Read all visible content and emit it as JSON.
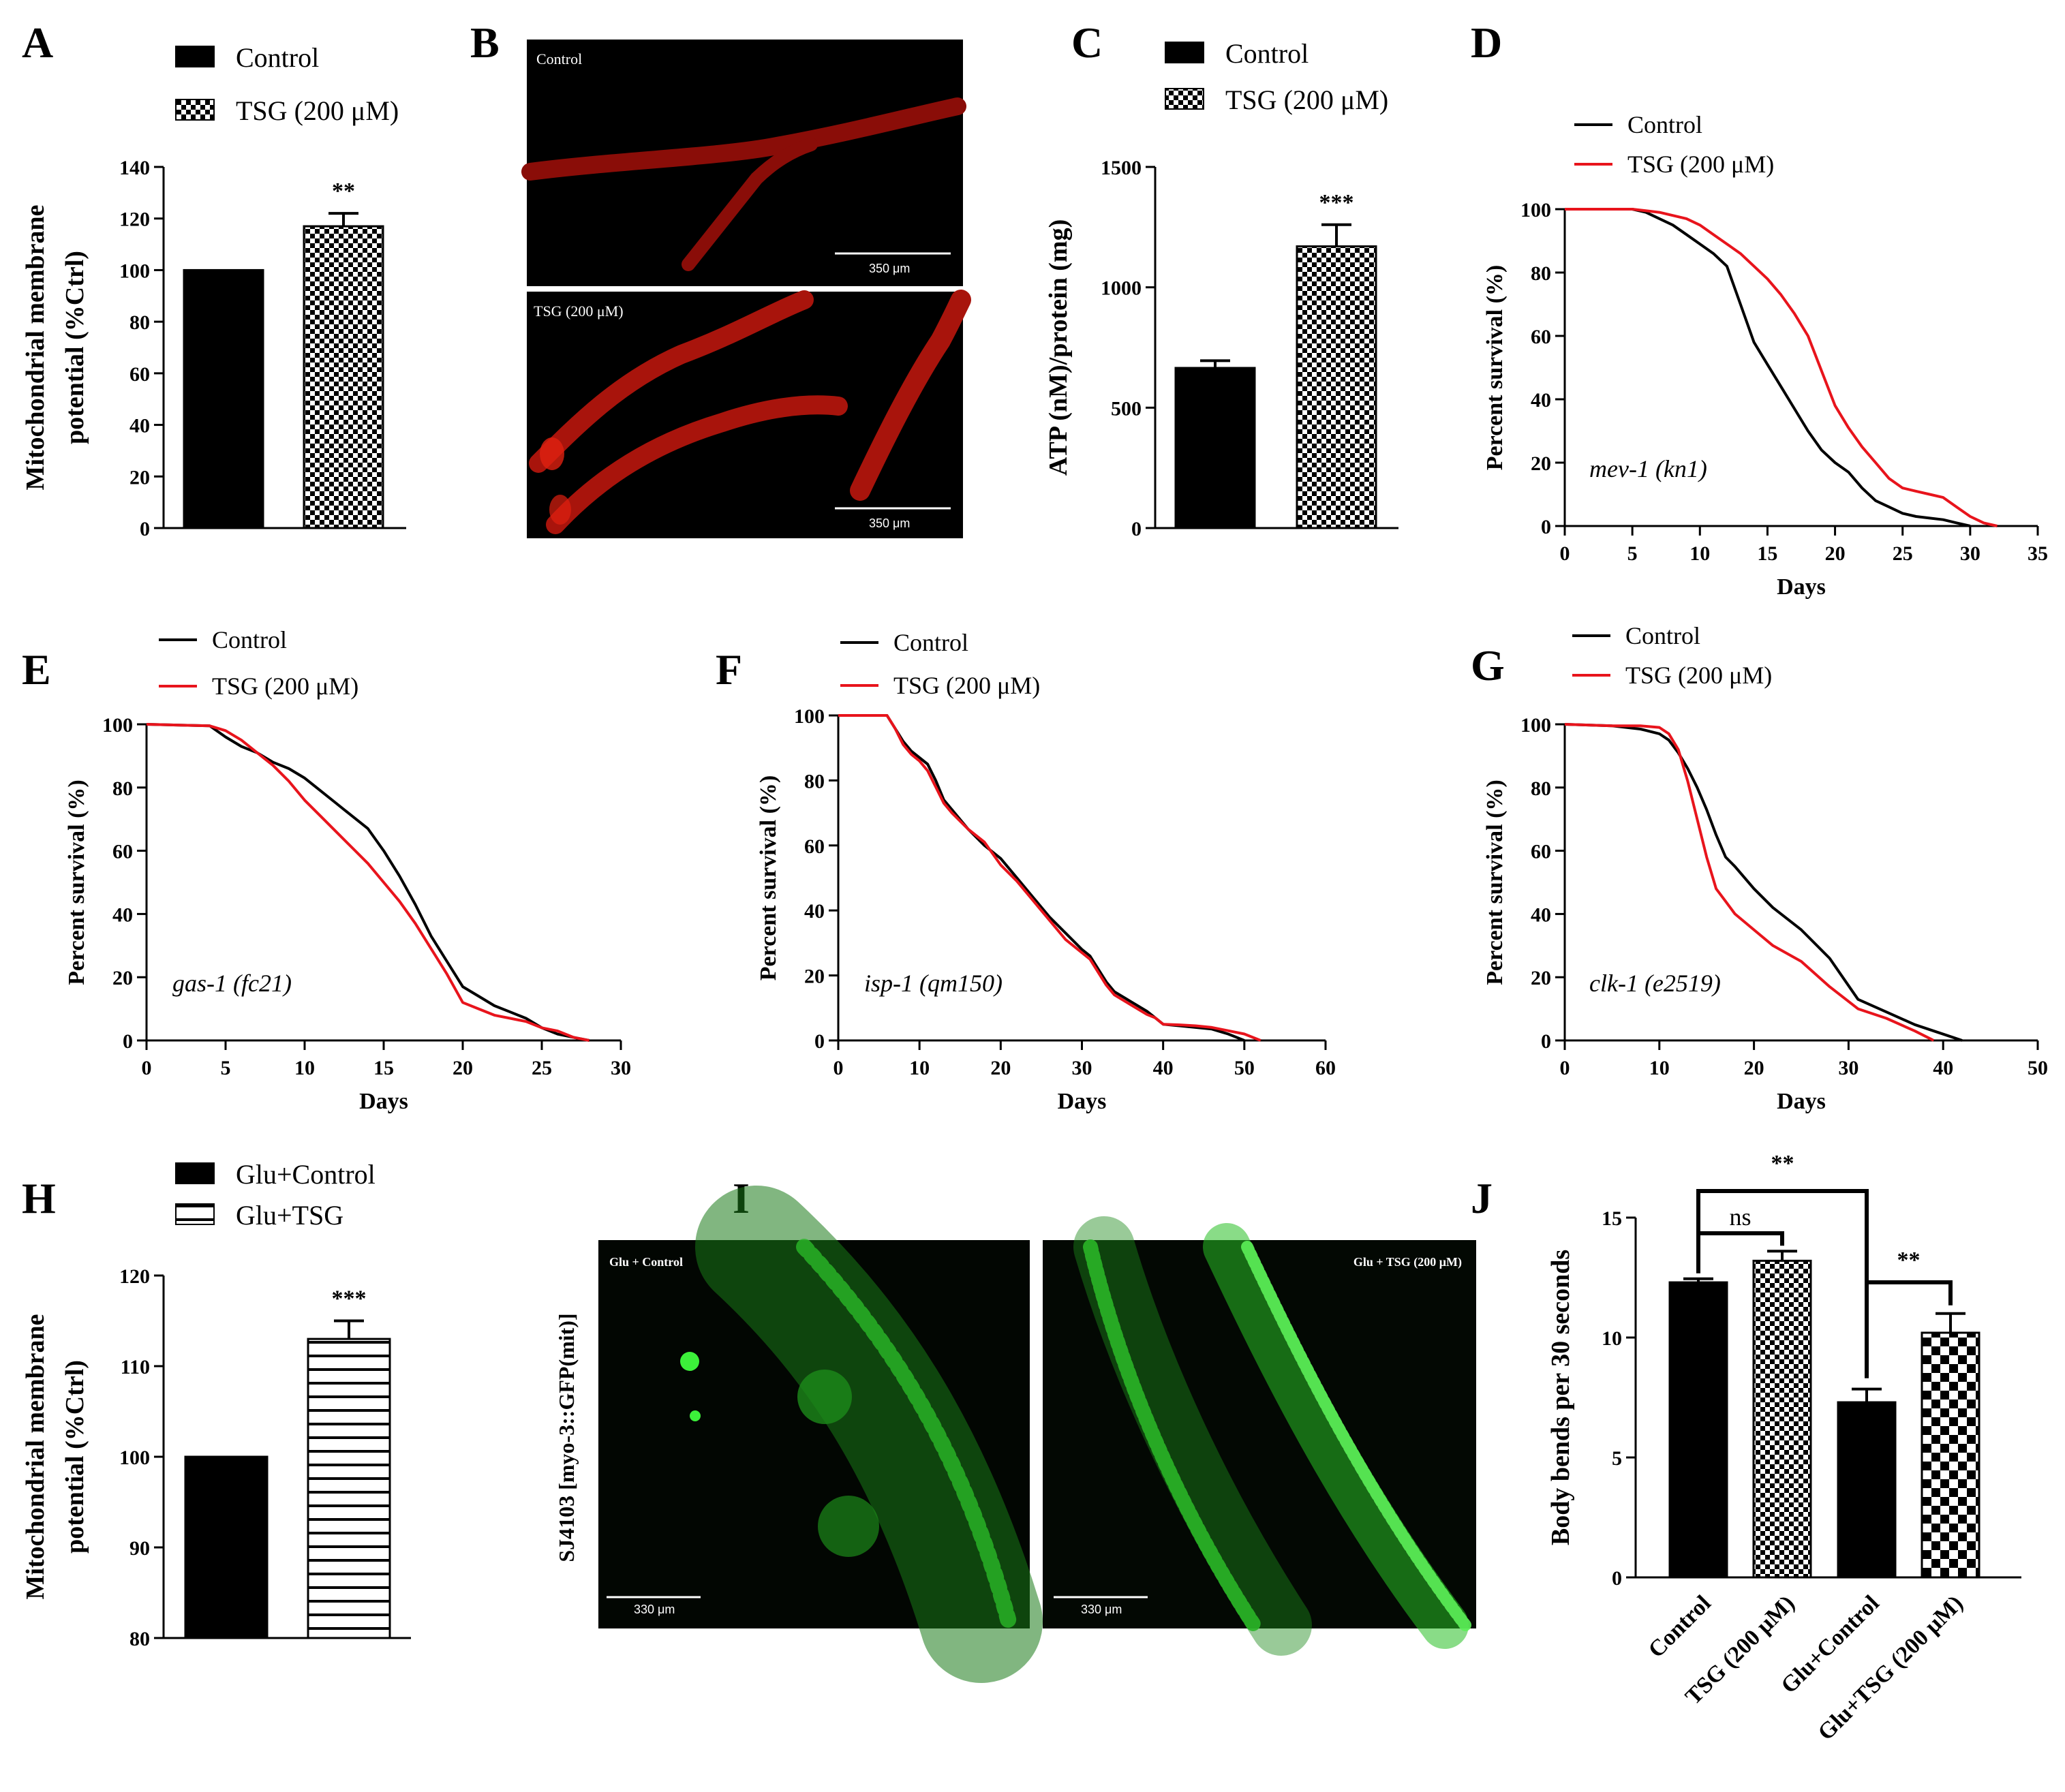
{
  "colors": {
    "control": "#000000",
    "tsg": "#e8141c",
    "micro_red": "#d01810",
    "micro_green": "#2ee02a"
  },
  "chart_data": [
    {
      "id": "A",
      "panel": "A",
      "type": "bar",
      "categories": [
        "Control",
        "TSG (200 μM)"
      ],
      "values": [
        100,
        117
      ],
      "errors": [
        0,
        5
      ],
      "patterns": [
        "solid",
        "checker"
      ],
      "significance": [
        {
          "to": 1,
          "label": "**"
        }
      ],
      "ylabel": [
        "Mitochondrial membrane",
        "potential (%Ctrl)"
      ],
      "ylim": [
        0,
        140
      ],
      "yticks": [
        0,
        20,
        40,
        60,
        80,
        100,
        120,
        140
      ],
      "legend": [
        "Control",
        "TSG (200 μM)"
      ]
    },
    {
      "id": "C",
      "panel": "C",
      "type": "bar",
      "categories": [
        "Control",
        "TSG (200 μM)"
      ],
      "values": [
        665,
        1170
      ],
      "errors": [
        30,
        90
      ],
      "patterns": [
        "solid",
        "checker"
      ],
      "significance": [
        {
          "to": 1,
          "label": "***"
        }
      ],
      "ylabel": [
        "ATP (nM)/protein (mg)"
      ],
      "ylim": [
        0,
        1500
      ],
      "yticks": [
        0,
        500,
        1000,
        1500
      ],
      "legend": [
        "Control",
        "TSG (200 μM)"
      ]
    },
    {
      "id": "D",
      "panel": "D",
      "type": "line",
      "xlabel": "Days",
      "ylabel": "Percent survival (%)",
      "xlim": [
        0,
        35
      ],
      "ylim": [
        0,
        100
      ],
      "xticks": [
        0,
        5,
        10,
        15,
        20,
        25,
        30,
        35
      ],
      "yticks": [
        0,
        20,
        40,
        60,
        80,
        100
      ],
      "annotation": "mev-1 (kn1)",
      "series": [
        {
          "name": "Control",
          "x": [
            0,
            5,
            6,
            7,
            8,
            9,
            10,
            11,
            12,
            13,
            14,
            15,
            16,
            17,
            18,
            19,
            20,
            21,
            22,
            23,
            24,
            25,
            26,
            27,
            28,
            29,
            30
          ],
          "y": [
            100,
            100,
            99,
            97,
            95,
            92,
            89,
            86,
            82,
            70,
            58,
            51,
            44,
            37,
            30,
            24,
            20,
            17,
            12,
            8,
            6,
            4,
            3,
            2.5,
            2,
            1,
            0
          ]
        },
        {
          "name": "TSG (200 μM)",
          "x": [
            0,
            5,
            7,
            9,
            10,
            11,
            12,
            13,
            14,
            15,
            16,
            17,
            18,
            19,
            20,
            21,
            22,
            23,
            24,
            25,
            26,
            27,
            28,
            29,
            30,
            31,
            32
          ],
          "y": [
            100,
            100,
            99,
            97,
            95,
            92,
            89,
            86,
            82,
            78,
            73,
            67,
            60,
            49,
            38,
            31,
            25,
            20,
            15,
            12,
            11,
            10,
            9,
            6,
            3,
            1,
            0
          ]
        }
      ],
      "legend": [
        "Control",
        "TSG (200 μM)"
      ]
    },
    {
      "id": "E",
      "panel": "E",
      "type": "line",
      "xlabel": "Days",
      "ylabel": "Percent survival (%)",
      "xlim": [
        0,
        30
      ],
      "ylim": [
        0,
        100
      ],
      "xticks": [
        0,
        5,
        10,
        15,
        20,
        25,
        30
      ],
      "yticks": [
        0,
        20,
        40,
        60,
        80,
        100
      ],
      "annotation": "gas-1 (fc21)",
      "series": [
        {
          "name": "Control",
          "x": [
            0,
            4,
            5,
            6,
            7,
            8,
            9,
            10,
            11,
            12,
            13,
            14,
            15,
            16,
            17,
            18,
            19,
            20,
            21,
            22,
            23,
            24,
            25,
            26,
            27,
            28
          ],
          "y": [
            100,
            99.5,
            96,
            93,
            91,
            88,
            86,
            83,
            79,
            75,
            71,
            67,
            60,
            52,
            43,
            33,
            25,
            17,
            14,
            11,
            9,
            7,
            4,
            2,
            1,
            0
          ]
        },
        {
          "name": "TSG (200 μM)",
          "x": [
            0,
            4,
            5,
            6,
            7,
            8,
            9,
            10,
            11,
            12,
            13,
            14,
            15,
            16,
            17,
            18,
            19,
            20,
            21,
            22,
            23,
            24,
            25,
            26,
            27,
            28
          ],
          "y": [
            100,
            99.5,
            98,
            95,
            91,
            87,
            82,
            76,
            71,
            66,
            61,
            56,
            50,
            44,
            37,
            29,
            21,
            12,
            10,
            8,
            7,
            6,
            4,
            3,
            1,
            0
          ]
        }
      ],
      "legend": [
        "Control",
        "TSG (200 μM)"
      ]
    },
    {
      "id": "F",
      "panel": "F",
      "type": "line",
      "xlabel": "Days",
      "ylabel": "Percent survival (%)",
      "xlim": [
        0,
        60
      ],
      "ylim": [
        0,
        100
      ],
      "xticks": [
        0,
        10,
        20,
        30,
        40,
        50,
        60
      ],
      "yticks": [
        0,
        20,
        40,
        60,
        80,
        100
      ],
      "annotation": "isp-1 (qm150)",
      "series": [
        {
          "name": "Control",
          "x": [
            0,
            6,
            7,
            8,
            9,
            10,
            11,
            12,
            13,
            14,
            16,
            18,
            20,
            22,
            24,
            26,
            28,
            30,
            31,
            32,
            33,
            34,
            36,
            38,
            39,
            40,
            42,
            44,
            46,
            48,
            49,
            50
          ],
          "y": [
            100,
            100,
            96,
            92,
            89,
            87,
            85,
            80,
            74,
            71,
            65,
            60,
            56,
            50,
            44,
            38,
            33,
            28,
            26,
            22,
            18,
            15,
            12,
            9,
            7,
            5,
            4.5,
            4,
            3.5,
            2,
            1,
            0
          ]
        },
        {
          "name": "TSG (200 μM)",
          "x": [
            0,
            6,
            7,
            8,
            9,
            10,
            11,
            12,
            13,
            14,
            16,
            18,
            20,
            22,
            24,
            26,
            28,
            30,
            31,
            32,
            33,
            34,
            36,
            38,
            39,
            40,
            42,
            44,
            46,
            48,
            50,
            52
          ],
          "y": [
            100,
            100,
            96,
            91,
            88,
            86,
            83,
            78,
            73,
            70,
            65,
            61,
            54,
            49,
            43,
            37,
            31,
            27,
            25,
            21,
            17,
            14,
            11,
            8,
            7,
            5,
            4.8,
            4.5,
            4,
            3,
            2,
            0
          ]
        }
      ],
      "legend": [
        "Control",
        "TSG (200 μM)"
      ]
    },
    {
      "id": "G",
      "panel": "G",
      "type": "line",
      "xlabel": "Days",
      "ylabel": "Percent survival (%)",
      "xlim": [
        0,
        50
      ],
      "ylim": [
        0,
        100
      ],
      "xticks": [
        0,
        10,
        20,
        30,
        40,
        50
      ],
      "yticks": [
        0,
        20,
        40,
        60,
        80,
        100
      ],
      "annotation": "clk-1 (e2519)",
      "series": [
        {
          "name": "Control",
          "x": [
            0,
            5,
            8,
            10,
            11,
            12,
            13,
            14,
            15,
            16,
            17,
            18,
            20,
            22,
            25,
            28,
            31,
            34,
            37,
            40,
            42
          ],
          "y": [
            100,
            99.5,
            98.5,
            97,
            95,
            91,
            86,
            80,
            73,
            65,
            58,
            55,
            48,
            42,
            35,
            26,
            13,
            9,
            5,
            2,
            0
          ]
        },
        {
          "name": "TSG (200 μM)",
          "x": [
            0,
            5,
            8,
            10,
            11,
            12,
            13,
            14,
            15,
            16,
            17,
            18,
            20,
            22,
            25,
            28,
            31,
            34,
            37,
            39
          ],
          "y": [
            100,
            99.5,
            99.5,
            99,
            97,
            92,
            82,
            70,
            58,
            48,
            44,
            40,
            35,
            30,
            25,
            17,
            10,
            7,
            3,
            0
          ]
        }
      ],
      "legend": [
        "Control",
        "TSG (200 μM)"
      ]
    },
    {
      "id": "H",
      "panel": "H",
      "type": "bar",
      "categories": [
        "Glu+Control",
        "Glu+TSG"
      ],
      "values": [
        100,
        113
      ],
      "errors": [
        0,
        2
      ],
      "patterns": [
        "solid",
        "hlines"
      ],
      "significance": [
        {
          "to": 1,
          "label": "***"
        }
      ],
      "ylabel": [
        "Mitochondrial membrane",
        "potential (%Ctrl)"
      ],
      "ylim": [
        80,
        120
      ],
      "yticks": [
        80,
        90,
        100,
        110,
        120
      ],
      "legend": [
        "Glu+Control",
        "Glu+TSG"
      ]
    },
    {
      "id": "J",
      "panel": "J",
      "type": "bar",
      "categories": [
        "Control",
        "TSG (200 μM)",
        "Glu+Control",
        "Glu+TSG (200 μM)"
      ],
      "values": [
        12.3,
        13.2,
        7.3,
        10.2
      ],
      "errors": [
        0.15,
        0.4,
        0.55,
        0.8
      ],
      "patterns": [
        "solid",
        "checker",
        "solid",
        "bigchecker"
      ],
      "ylabel": [
        "Body bends per 30 seconds"
      ],
      "ylim": [
        0,
        15
      ],
      "yticks": [
        0,
        5,
        10,
        15
      ],
      "comparisons": [
        {
          "from": 0,
          "to": 1,
          "label": "ns"
        },
        {
          "from": 0,
          "to": 2,
          "label": "**"
        },
        {
          "from": 2,
          "to": 3,
          "label": "**"
        }
      ]
    }
  ],
  "images": {
    "B": {
      "panel": "B",
      "top_label": "Control",
      "bottom_label": "TSG (200 μM)",
      "scale": "350 μm"
    },
    "I": {
      "panel": "I",
      "side_label": "SJ4103 [myo-3::GFP(mit)]",
      "left_label": "Glu + Control",
      "right_label": "Glu + TSG (200 μM)",
      "scale": "330 μm"
    }
  }
}
